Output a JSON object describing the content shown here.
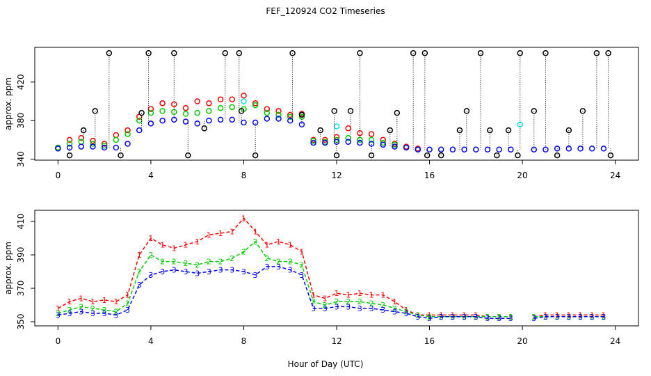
{
  "chart_data": [
    {
      "type": "scatter",
      "title": "FEF_120924  CO2 Timeseries",
      "ylabel": "approx. ppm",
      "x": [
        0,
        0.5,
        1,
        1.5,
        2,
        2.5,
        3,
        3.5,
        4,
        4.5,
        5,
        5.5,
        6,
        6.5,
        7,
        7.5,
        8,
        8.5,
        9,
        9.5,
        10,
        10.5,
        11,
        11.5,
        12,
        12.5,
        13,
        13.5,
        14,
        14.5,
        15,
        15.5,
        16,
        16.5,
        17,
        17.5,
        18,
        18.5,
        19,
        19.5,
        20,
        20.5,
        21,
        21.5,
        22,
        22.5,
        23,
        23.5
      ],
      "xlim": [
        -1,
        25
      ],
      "ylim": [
        339,
        456
      ],
      "xticks": [
        0,
        4,
        8,
        12,
        16,
        20,
        24
      ],
      "yticks": [
        340,
        380,
        420
      ],
      "series": [
        {
          "color": "#ff0000",
          "values": [
            352,
            360,
            362,
            359,
            356,
            365,
            370,
            384,
            392,
            398,
            397,
            393,
            400,
            398,
            402,
            402,
            406,
            398,
            392,
            390,
            386,
            387,
            360,
            360,
            363,
            372,
            367,
            366,
            360,
            356,
            353,
            351,
            null,
            null,
            null,
            null,
            null,
            null,
            null,
            null,
            null,
            null,
            null,
            null,
            null,
            null,
            null,
            null
          ]
        },
        {
          "color": "#00cd00",
          "values": [
            352,
            356,
            358,
            356,
            354,
            360,
            366,
            380,
            388,
            390,
            389,
            387,
            388,
            390,
            393,
            394,
            392,
            396,
            388,
            386,
            384,
            384,
            359,
            358,
            360,
            362,
            360,
            360,
            357,
            355,
            352,
            350,
            null,
            null,
            null,
            null,
            null,
            null,
            null,
            null,
            null,
            null,
            null,
            null,
            null,
            null,
            null,
            null
          ]
        },
        {
          "color": "#0000ff",
          "values": [
            351,
            352,
            353,
            353,
            352,
            352,
            356,
            370,
            377,
            380,
            381,
            379,
            377,
            380,
            381,
            381,
            378,
            378,
            382,
            382,
            380,
            376,
            357,
            357,
            358,
            358,
            357,
            356,
            355,
            353,
            352,
            350,
            350,
            350,
            350,
            350,
            350,
            350,
            350,
            350,
            null,
            350,
            350,
            351,
            351,
            351,
            351,
            351
          ]
        },
        {
          "color": "#00e5ee",
          "x": [
            8.0,
            12.0,
            19.9
          ],
          "values": [
            400,
            374,
            376
          ]
        },
        {
          "color": "#000000",
          "x": [
            0.5,
            1.1,
            1.6,
            2.2,
            2.7,
            3.6,
            3.9,
            5.0,
            5.6,
            6.3,
            7.2,
            7.8,
            7.9,
            8.5,
            10.1,
            10.5,
            11.3,
            11.9,
            12.0,
            12.6,
            13.0,
            13.5,
            14.3,
            14.6,
            15.3,
            15.8,
            15.9,
            16.5,
            17.3,
            17.6,
            18.2,
            18.6,
            18.9,
            19.4,
            19.8,
            19.9,
            20.5,
            21.0,
            21.5,
            22.0,
            22.6,
            23.2,
            23.7,
            23.8
          ],
          "values": [
            344,
            370,
            390,
            450,
            344,
            388,
            450,
            450,
            344,
            372,
            450,
            450,
            390,
            344,
            450,
            386,
            370,
            390,
            344,
            390,
            450,
            344,
            370,
            388,
            450,
            450,
            344,
            344,
            370,
            390,
            450,
            370,
            344,
            370,
            344,
            450,
            390,
            450,
            344,
            370,
            390,
            450,
            450,
            344
          ]
        }
      ]
    },
    {
      "type": "line",
      "ylabel": "approx. ppm",
      "xlabel": "Hour of Day (UTC)",
      "x": [
        0,
        0.5,
        1,
        1.5,
        2,
        2.5,
        3,
        3.5,
        4,
        4.5,
        5,
        5.5,
        6,
        6.5,
        7,
        7.5,
        8,
        8.5,
        9,
        9.5,
        10,
        10.5,
        11,
        11.5,
        12,
        12.5,
        13,
        13.5,
        14,
        14.5,
        15,
        15.5,
        16,
        16.5,
        17,
        17.5,
        18,
        18.5,
        19,
        19.5,
        20,
        20.5,
        21,
        21.5,
        22,
        22.5,
        23,
        23.5
      ],
      "xlim": [
        -1,
        25
      ],
      "ylim": [
        347.5,
        416.7
      ],
      "xticks": [
        0,
        4,
        8,
        12,
        16,
        20,
        24
      ],
      "yticks": [
        350,
        370,
        390,
        410
      ],
      "series": [
        {
          "marker": "1",
          "color": "#ff0000",
          "values": [
            358,
            362,
            364,
            362,
            363,
            362,
            366,
            390,
            400,
            396,
            394,
            396,
            398,
            402,
            403,
            404,
            412,
            404,
            396,
            398,
            396,
            392,
            366,
            364,
            367,
            366,
            367,
            366,
            366,
            362,
            357,
            354,
            354,
            354,
            354,
            354,
            354,
            353,
            353,
            353,
            null,
            353,
            354,
            354,
            354,
            354,
            354,
            354
          ]
        },
        {
          "marker": "2",
          "color": "#00cd00",
          "values": [
            355,
            357,
            359,
            358,
            357,
            356,
            361,
            380,
            390,
            386,
            386,
            385,
            384,
            386,
            386,
            388,
            392,
            398,
            388,
            386,
            386,
            384,
            362,
            360,
            362,
            362,
            362,
            361,
            360,
            358,
            356,
            354,
            353,
            353,
            353,
            353,
            353,
            353,
            353,
            353,
            null,
            353,
            353,
            353,
            353,
            353,
            353,
            353
          ]
        },
        {
          "marker": "3",
          "color": "#0000ff",
          "values": [
            354,
            355,
            356,
            355,
            355,
            354,
            357,
            372,
            378,
            380,
            381,
            380,
            379,
            380,
            381,
            381,
            380,
            378,
            383,
            383,
            381,
            378,
            358,
            358,
            359,
            359,
            358,
            358,
            357,
            356,
            355,
            353,
            352,
            353,
            353,
            353,
            353,
            352,
            352,
            352,
            null,
            352,
            353,
            353,
            353,
            353,
            353,
            353
          ]
        }
      ]
    }
  ]
}
